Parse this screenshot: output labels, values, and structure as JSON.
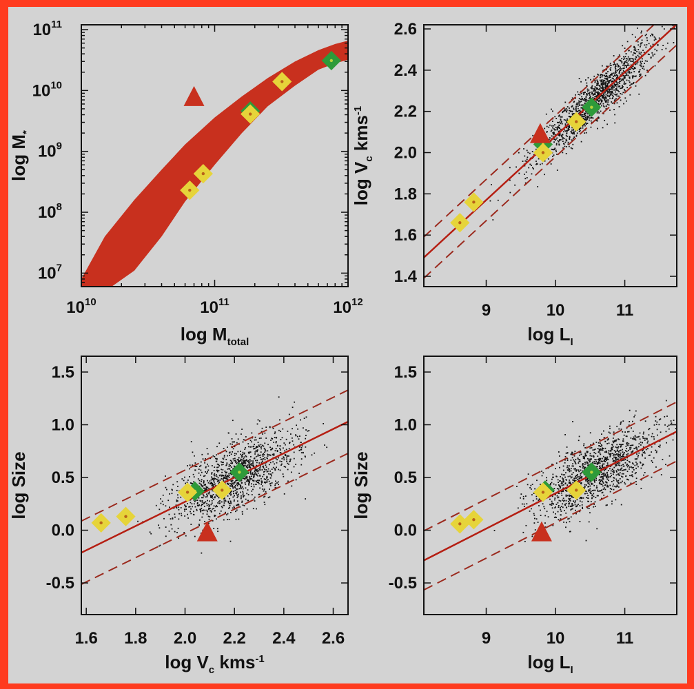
{
  "colors": {
    "frame": "#ff3b1f",
    "panel_bg": "#d3d3d3",
    "band": "#c8301e",
    "triangle": "#c8301e",
    "fit_line": "#b51e12",
    "dash_line": "#9b2a1e",
    "yellow": "#e6d43a",
    "green": "#2e9a3a",
    "scatter": "#111111"
  },
  "chart_data": [
    {
      "type": "area",
      "xlabel": "log M",
      "xlabel_sub": "total",
      "ylabel": "log M",
      "ylabel_sub": "*",
      "xscale": "log",
      "yscale": "log",
      "xlim": [
        10000000000.0,
        1000000000000.0
      ],
      "ylim": [
        6000000.0,
        120000000000.0
      ],
      "xticks": [
        {
          "v": 10000000000.0,
          "b": "10",
          "e": "10"
        },
        {
          "v": 100000000000.0,
          "b": "10",
          "e": "11"
        },
        {
          "v": 1000000000000.0,
          "b": "10",
          "e": "12"
        }
      ],
      "yticks": [
        {
          "v": 10000000.0,
          "b": "10",
          "e": "7"
        },
        {
          "v": 100000000.0,
          "b": "10",
          "e": "8"
        },
        {
          "v": 1000000000.0,
          "b": "10",
          "e": "9"
        },
        {
          "v": 10000000000.0,
          "b": "10",
          "e": "10"
        },
        {
          "v": 100000000000.0,
          "b": "10",
          "e": "11"
        }
      ],
      "band": {
        "x": [
          10000000000.0,
          15000000000.0,
          25000000000.0,
          40000000000.0,
          60000000000.0,
          100000000000.0,
          160000000000.0,
          250000000000.0,
          400000000000.0,
          600000000000.0,
          800000000000.0,
          1000000000000.0
        ],
        "upper": [
          8000000.0,
          40000000.0,
          160000000.0,
          500000000.0,
          1300000000.0,
          3600000000.0,
          8000000000.0,
          16000000000.0,
          30000000000.0,
          46000000000.0,
          58000000000.0,
          66000000000.0
        ],
        "lower": [
          4000000.0,
          5000000.0,
          11000000.0,
          40000000.0,
          150000000.0,
          600000000.0,
          2000000000.0,
          5500000000.0,
          12000000000.0,
          22000000000.0,
          28000000000.0,
          32000000000.0
        ]
      },
      "points": [
        {
          "x": 65000000000.0,
          "y": 230000000.0,
          "s": "yellow"
        },
        {
          "x": 82000000000.0,
          "y": 430000000.0,
          "s": "yellow"
        },
        {
          "x": 185000000000.0,
          "y": 4600000000.0,
          "s": "green"
        },
        {
          "x": 185000000000.0,
          "y": 4100000000.0,
          "s": "yellow"
        },
        {
          "x": 320000000000.0,
          "y": 14000000000.0,
          "s": "yellow"
        },
        {
          "x": 750000000000.0,
          "y": 31000000000.0,
          "s": "green"
        },
        {
          "x": 70000000000.0,
          "y": 7800000000.0,
          "s": "triangle"
        }
      ]
    },
    {
      "type": "scatter",
      "xlabel": "log L",
      "xlabel_sub": "I",
      "ylabel": "log V",
      "ylabel_sub": "c",
      "ylabel_tail": " kms",
      "ylabel_sup": "-1",
      "xlim": [
        8.1,
        11.75
      ],
      "ylim": [
        1.35,
        2.62
      ],
      "xticks": [
        9,
        10,
        11
      ],
      "xticklabels": [
        "9",
        "10",
        "11"
      ],
      "yticks": [
        1.4,
        1.6,
        1.8,
        2.0,
        2.2,
        2.4,
        2.6
      ],
      "yticklabels": [
        "1.4",
        "1.6",
        "1.8",
        "2.0",
        "2.2",
        "2.4",
        "2.6"
      ],
      "fit": {
        "slope": 0.31,
        "intercept": -1.02,
        "scatter": 0.1
      },
      "cloud": {
        "n": 1400,
        "x_mean": 10.55,
        "x_sd": 0.45,
        "spread": 0.055
      },
      "points": [
        {
          "x": 8.62,
          "y": 1.66,
          "s": "yellow"
        },
        {
          "x": 8.82,
          "y": 1.76,
          "s": "yellow"
        },
        {
          "x": 9.82,
          "y": 2.04,
          "s": "green"
        },
        {
          "x": 9.82,
          "y": 2.0,
          "s": "yellow"
        },
        {
          "x": 10.3,
          "y": 2.15,
          "s": "yellow"
        },
        {
          "x": 10.52,
          "y": 2.22,
          "s": "green"
        },
        {
          "x": 9.78,
          "y": 2.09,
          "s": "triangle"
        }
      ]
    },
    {
      "type": "scatter",
      "xlabel": "log V",
      "xlabel_sub": "c",
      "xlabel_tail": " kms",
      "xlabel_sup": "-1",
      "ylabel": "log Size",
      "xlim": [
        1.58,
        2.66
      ],
      "ylim": [
        -0.8,
        1.65
      ],
      "xticks": [
        1.6,
        1.8,
        2.0,
        2.2,
        2.4,
        2.6
      ],
      "xticklabels": [
        "1.6",
        "1.8",
        "2.0",
        "2.2",
        "2.4",
        "2.6"
      ],
      "yticks": [
        -0.5,
        0.0,
        0.5,
        1.0,
        1.5
      ],
      "yticklabels": [
        "-0.5",
        "0.0",
        "0.5",
        "1.0",
        "1.5"
      ],
      "fit": {
        "slope": 1.15,
        "intercept": -2.03,
        "scatter": 0.3
      },
      "cloud": {
        "n": 1300,
        "x_mean": 2.2,
        "x_sd": 0.13,
        "spread": 0.17
      },
      "points": [
        {
          "x": 1.66,
          "y": 0.07,
          "s": "yellow"
        },
        {
          "x": 1.76,
          "y": 0.13,
          "s": "yellow"
        },
        {
          "x": 2.04,
          "y": 0.37,
          "s": "green"
        },
        {
          "x": 2.01,
          "y": 0.36,
          "s": "yellow"
        },
        {
          "x": 2.15,
          "y": 0.38,
          "s": "yellow"
        },
        {
          "x": 2.22,
          "y": 0.55,
          "s": "green"
        },
        {
          "x": 2.09,
          "y": -0.02,
          "s": "triangle"
        }
      ]
    },
    {
      "type": "scatter",
      "xlabel": "log L",
      "xlabel_sub": "I",
      "ylabel": "log Size",
      "xlim": [
        8.1,
        11.75
      ],
      "ylim": [
        -0.8,
        1.65
      ],
      "xticks": [
        9,
        10,
        11
      ],
      "xticklabels": [
        "9",
        "10",
        "11"
      ],
      "yticks": [
        -0.5,
        0.0,
        0.5,
        1.0,
        1.5
      ],
      "yticklabels": [
        "-0.5",
        "0.0",
        "0.5",
        "1.0",
        "1.5"
      ],
      "fit": {
        "slope": 0.335,
        "intercept": -3.0,
        "scatter": 0.28
      },
      "cloud": {
        "n": 1300,
        "x_mean": 10.55,
        "x_sd": 0.45,
        "spread": 0.16
      },
      "points": [
        {
          "x": 8.62,
          "y": 0.06,
          "s": "yellow"
        },
        {
          "x": 8.82,
          "y": 0.1,
          "s": "yellow"
        },
        {
          "x": 9.85,
          "y": 0.38,
          "s": "green"
        },
        {
          "x": 9.82,
          "y": 0.36,
          "s": "yellow"
        },
        {
          "x": 10.3,
          "y": 0.38,
          "s": "yellow"
        },
        {
          "x": 10.52,
          "y": 0.55,
          "s": "green"
        },
        {
          "x": 9.8,
          "y": -0.02,
          "s": "triangle"
        }
      ]
    }
  ]
}
